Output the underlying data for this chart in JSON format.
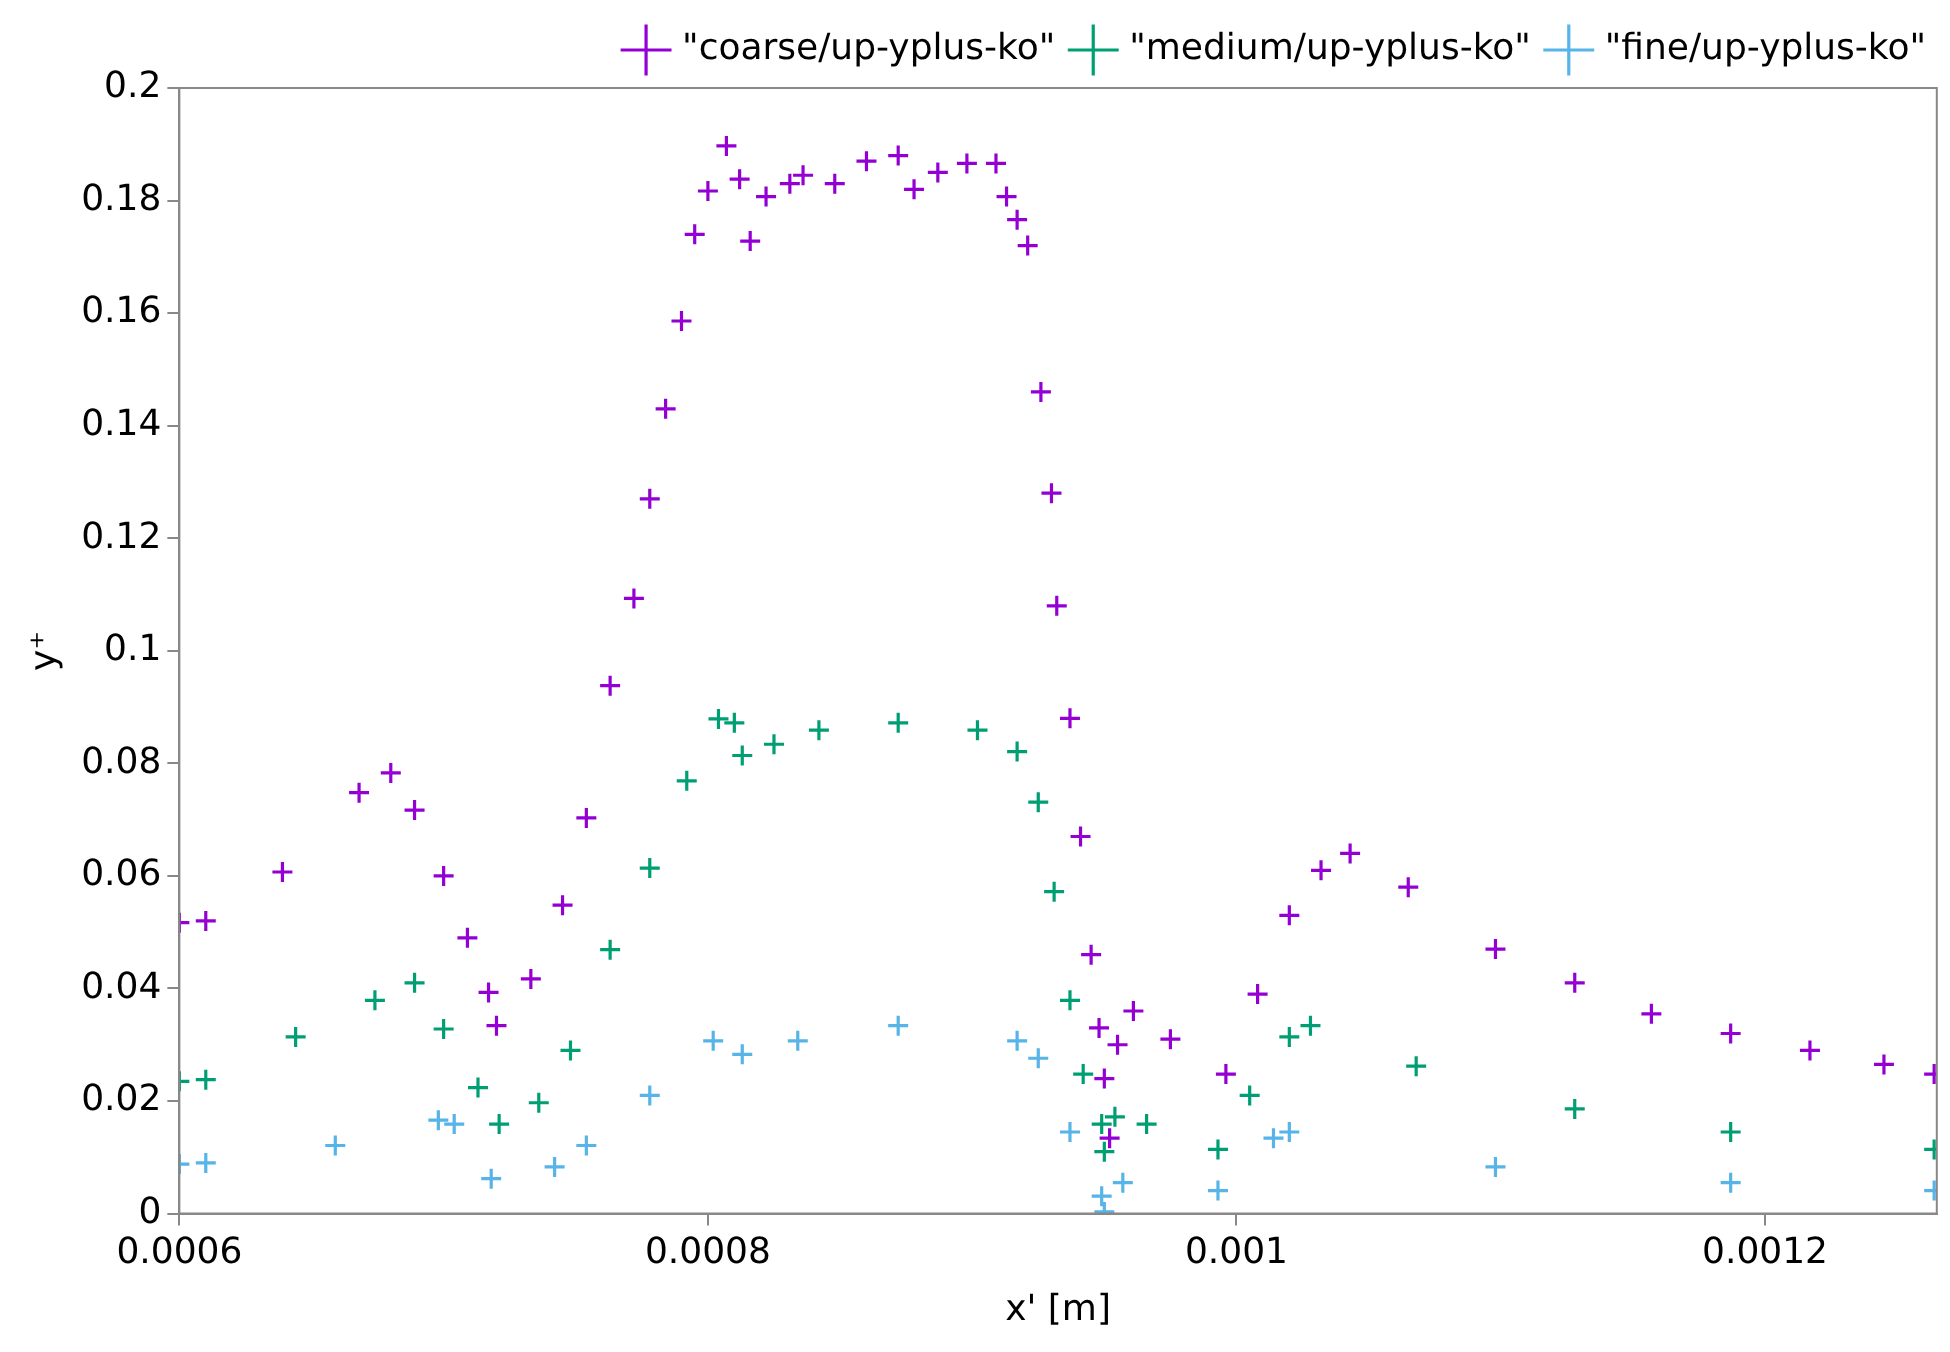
{
  "chart_data": {
    "type": "scatter",
    "xlabel": "x' [m]",
    "ylabel": "y⁺",
    "xlim": [
      0.0006,
      0.001265
    ],
    "xticks": [
      0.0006,
      0.0008,
      0.001,
      0.0012
    ],
    "ylim": [
      0,
      0.2
    ],
    "yticks": [
      0,
      0.02,
      0.04,
      0.06,
      0.08,
      0.1,
      0.12,
      0.14,
      0.16,
      0.18,
      0.2
    ],
    "grid": false,
    "legend": "top right",
    "series": [
      {
        "name": "\"coarse/up-yplus-ko\"",
        "color": "#9400d3",
        "marker": "cross",
        "x": [
          0.0006,
          0.00061,
          0.000639,
          0.000668,
          0.00068,
          0.000689,
          0.0007,
          0.000709,
          0.000717,
          0.00072,
          0.000733,
          0.000745,
          0.000754,
          0.000763,
          0.000772,
          0.000778,
          0.000784,
          0.00079,
          0.000795,
          0.0008,
          0.000807,
          0.000812,
          0.000816,
          0.000822,
          0.000831,
          0.000836,
          0.000848,
          0.00086,
          0.000872,
          0.000878,
          0.000887,
          0.000898,
          0.000909,
          0.000913,
          0.000917,
          0.000921,
          0.000926,
          0.00093,
          0.000932,
          0.000937,
          0.000941,
          0.000945,
          0.000948,
          0.00095,
          0.000952,
          0.000955,
          0.000961,
          0.000975,
          0.000996,
          0.001008,
          0.00102,
          0.001032,
          0.001043,
          0.001065,
          0.001098,
          0.001128,
          0.001157,
          0.001187,
          0.001217,
          0.001245,
          0.001264
        ],
        "values": [
          0.0517,
          0.052,
          0.0607,
          0.0748,
          0.0783,
          0.0717,
          0.06,
          0.049,
          0.0393,
          0.0334,
          0.0417,
          0.0548,
          0.0703,
          0.0938,
          0.1093,
          0.127,
          0.143,
          0.1586,
          0.174,
          0.1817,
          0.1897,
          0.1838,
          0.1728,
          0.1807,
          0.183,
          0.1845,
          0.183,
          0.187,
          0.188,
          0.182,
          0.185,
          0.1866,
          0.1866,
          0.1807,
          0.1766,
          0.172,
          0.146,
          0.128,
          0.108,
          0.088,
          0.067,
          0.046,
          0.033,
          0.024,
          0.0134,
          0.03,
          0.036,
          0.031,
          0.0248,
          0.039,
          0.053,
          0.061,
          0.064,
          0.058,
          0.047,
          0.041,
          0.0355,
          0.032,
          0.029,
          0.0265,
          0.0248
        ]
      },
      {
        "name": "\"medium/up-yplus-ko\"",
        "color": "#009e73",
        "marker": "cross",
        "x": [
          0.0006,
          0.00061,
          0.000644,
          0.000674,
          0.000689,
          0.0007,
          0.000713,
          0.000721,
          0.000736,
          0.000748,
          0.000763,
          0.000778,
          0.000792,
          0.000804,
          0.00081,
          0.000813,
          0.000825,
          0.000842,
          0.000872,
          0.000902,
          0.000917,
          0.000925,
          0.000931,
          0.000937,
          0.000942,
          0.000949,
          0.00095,
          0.000954,
          0.000966,
          0.000993,
          0.001005,
          0.00102,
          0.001028,
          0.001068,
          0.001128,
          0.001187,
          0.001264
        ],
        "values": [
          0.0235,
          0.0238,
          0.0314,
          0.0379,
          0.041,
          0.0328,
          0.0224,
          0.0159,
          0.0197,
          0.029,
          0.0469,
          0.0614,
          0.0769,
          0.0879,
          0.0872,
          0.0814,
          0.0834,
          0.0859,
          0.0872,
          0.0859,
          0.0821,
          0.0731,
          0.0572,
          0.0379,
          0.0248,
          0.0159,
          0.011,
          0.0172,
          0.0159,
          0.0114,
          0.021,
          0.0314,
          0.0334,
          0.0262,
          0.0186,
          0.0145,
          0.0114
        ]
      },
      {
        "name": "\"fine/up-yplus-ko\"",
        "color": "#56b4e9",
        "marker": "cross",
        "x": [
          0.0006,
          0.00061,
          0.000659,
          0.000698,
          0.000704,
          0.000718,
          0.000742,
          0.000754,
          0.000778,
          0.000802,
          0.000813,
          0.000834,
          0.000872,
          0.000917,
          0.000925,
          0.000937,
          0.000949,
          0.00095,
          0.000957,
          0.000993,
          0.001014,
          0.00102,
          0.001098,
          0.001187,
          0.001264
        ],
        "values": [
          0.0088,
          0.009,
          0.0121,
          0.0166,
          0.0159,
          0.0062,
          0.0083,
          0.0121,
          0.021,
          0.0307,
          0.0283,
          0.0307,
          0.0334,
          0.0307,
          0.0276,
          0.0145,
          0.0031,
          0.0003,
          0.0055,
          0.0041,
          0.0134,
          0.0145,
          0.0083,
          0.0055,
          0.0041
        ]
      }
    ]
  }
}
